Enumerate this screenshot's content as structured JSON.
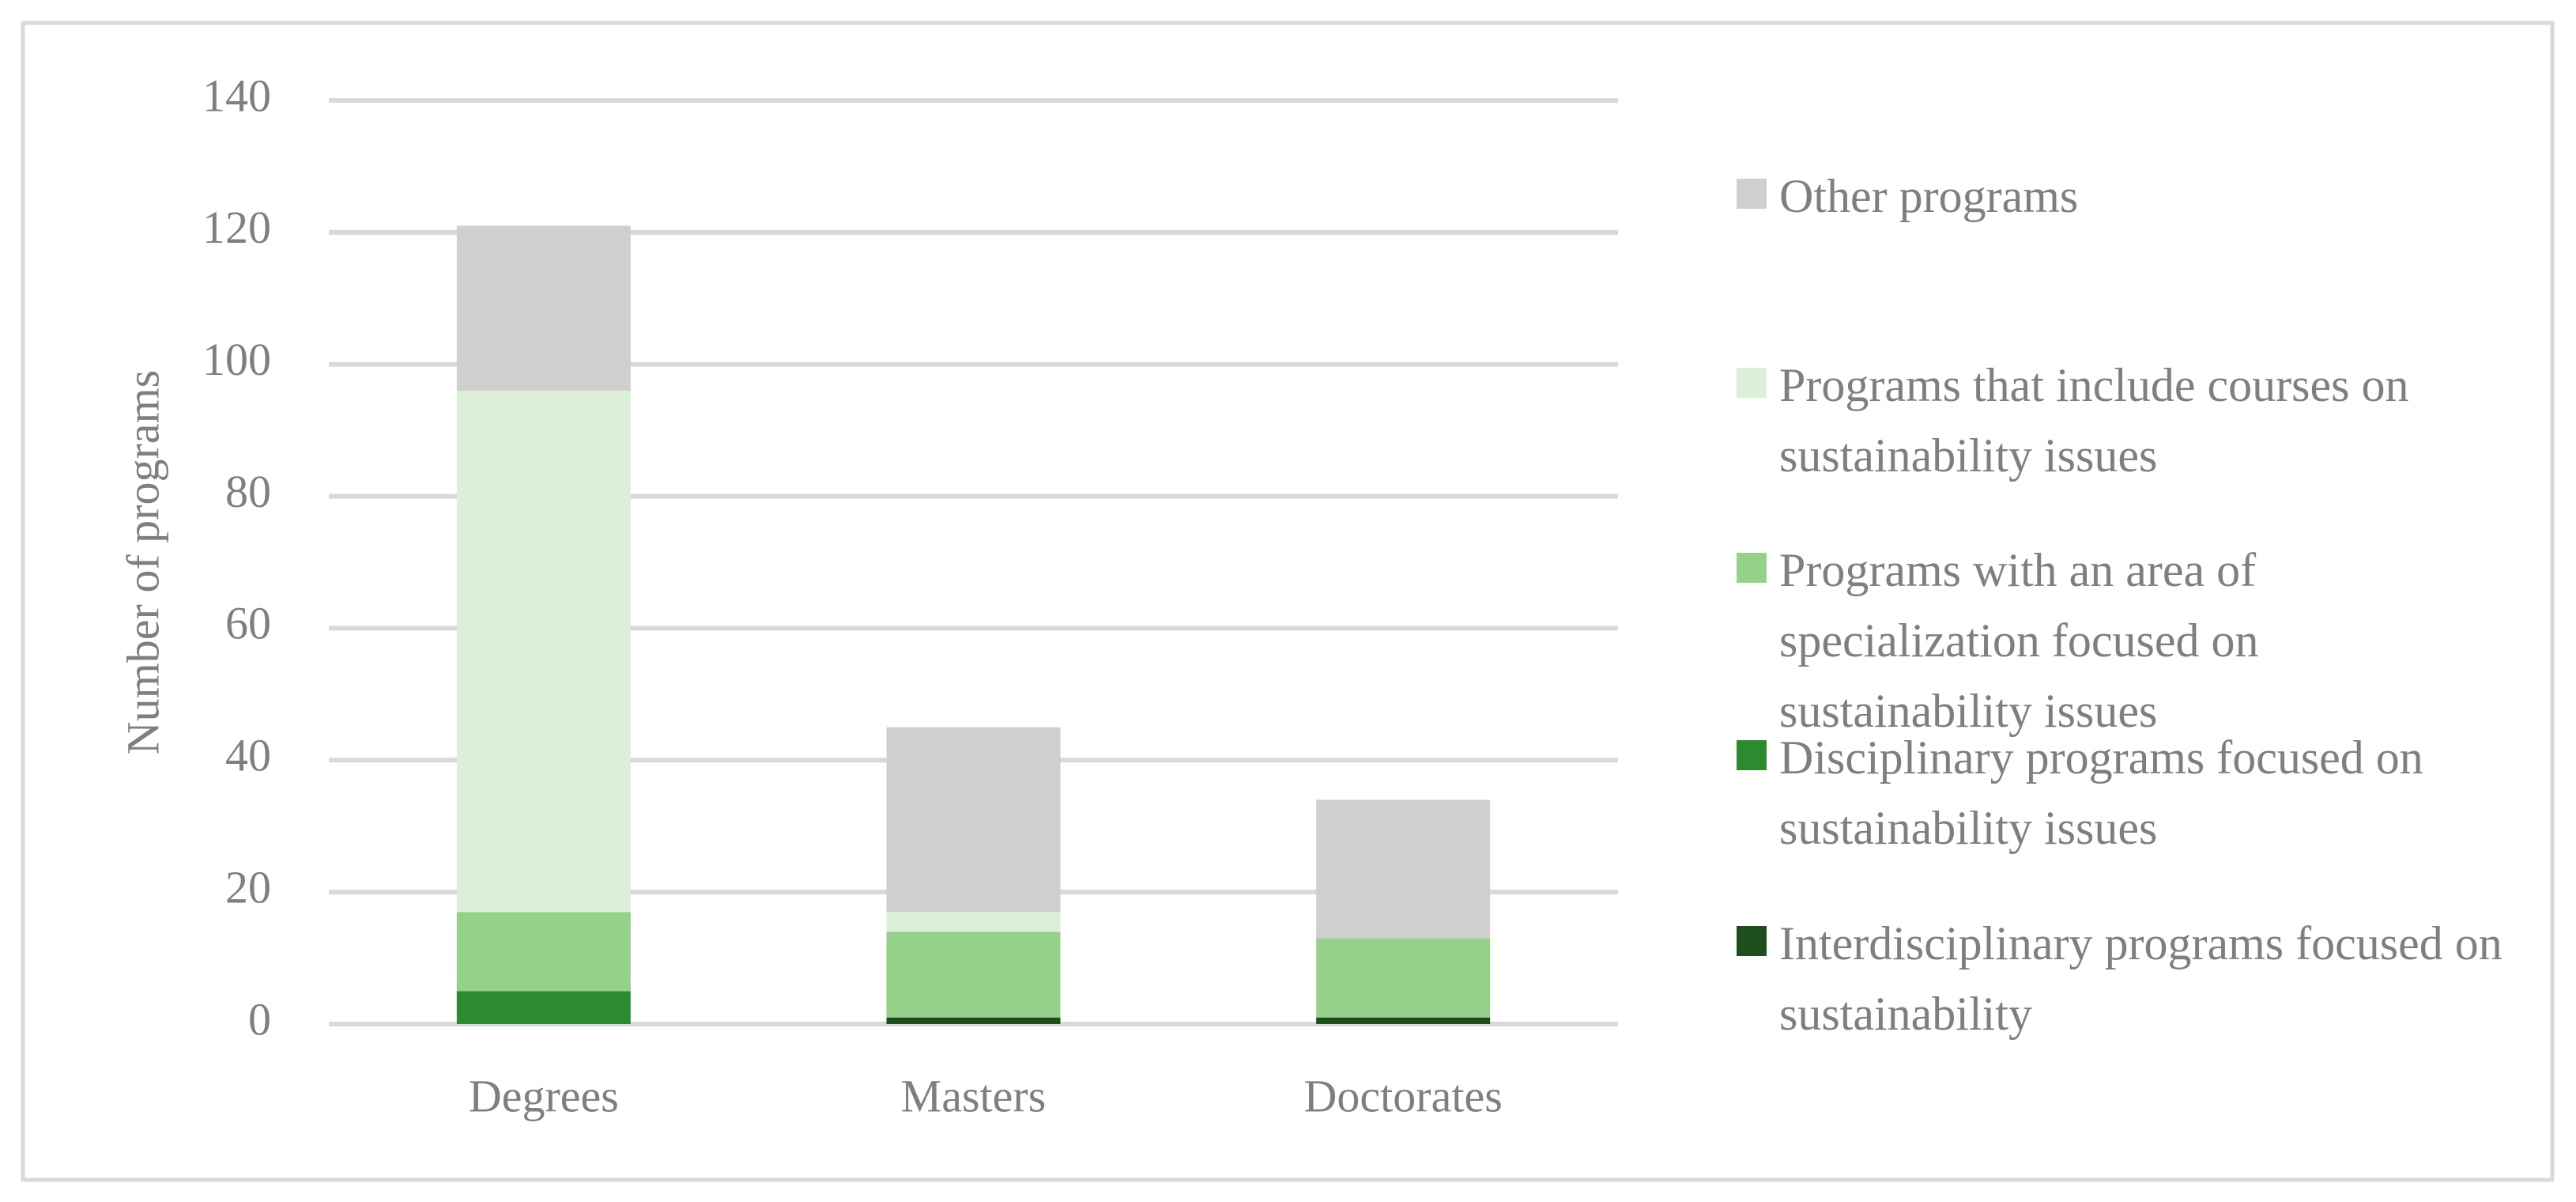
{
  "chart_data": {
    "type": "stacked_bar",
    "y_label": "Number of programs",
    "categories": [
      "Degrees",
      "Masters",
      "Doctorates"
    ],
    "series": [
      {
        "name": "Interdisciplinary programs focused on sustainability",
        "color": "#1e4d1e",
        "values": [
          0,
          1,
          1
        ]
      },
      {
        "name": "Disciplinary programs focused on sustainability issues",
        "color": "#2e8a2e",
        "values": [
          5,
          0,
          0
        ]
      },
      {
        "name": "Programs with an area of specialization focused on sustainability issues",
        "color": "#96d18a",
        "values": [
          12,
          13,
          12
        ]
      },
      {
        "name": "Programs that include courses on sustainability issues",
        "color": "#dcf0d9",
        "values": [
          79,
          3,
          0
        ]
      },
      {
        "name": "Other programs",
        "color": "#d0cece",
        "values": [
          25,
          28,
          21
        ]
      }
    ],
    "ylim": [
      0,
      140
    ],
    "yticks": [
      0,
      20,
      40,
      60,
      80,
      100,
      120,
      140
    ],
    "grid": true,
    "legend": "right"
  }
}
